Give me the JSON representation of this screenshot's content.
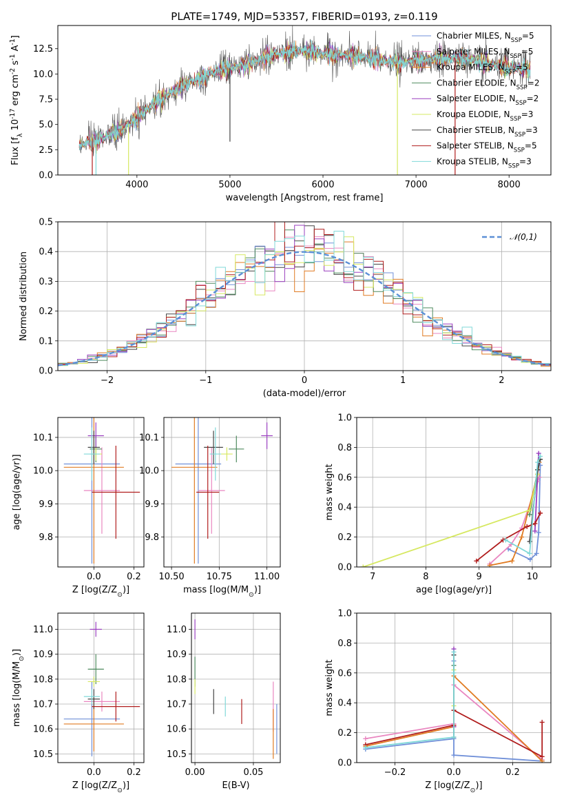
{
  "series_defs": [
    {
      "name": "Chabrier MILES, N$_{SSP}$=5",
      "color": "#6f8fd8"
    },
    {
      "name": "Salpeter MILES, N$_{SSP}$=5",
      "color": "#e986c0"
    },
    {
      "name": "Kroupa MILES, N$_{SSP}$=5",
      "color": "#e07b22"
    },
    {
      "name": "Chabrier ELODIE, N$_{SSP}$=2",
      "color": "#4e8a5e"
    },
    {
      "name": "Salpeter ELODIE, N$_{SSP}$=2",
      "color": "#9a3fbf"
    },
    {
      "name": "Kroupa ELODIE, N$_{SSP}$=3",
      "color": "#d6e860"
    },
    {
      "name": "Chabrier STELIB, N$_{SSP}$=3",
      "color": "#444444"
    },
    {
      "name": "Salpeter STELIB, N$_{SSP}$=5",
      "color": "#b01c1c"
    },
    {
      "name": "Kroupa STELIB, N$_{SSP}$=3",
      "color": "#7fd8d8"
    }
  ],
  "chart_data": [
    {
      "id": "spectrum",
      "type": "line",
      "title": "PLATE=1749, MJD=53357, FIBERID=0193, z=0.119",
      "xlabel": "wavelength [Angstrom, rest frame]",
      "ylabel": "Flux [$f_\\lambda 10^{-17}$ erg cm$^{-2}$ s$^{-1}$ A$^{-1}$]",
      "xlim": [
        3150,
        8450
      ],
      "ylim": [
        0,
        14.8
      ],
      "xticks": [
        4000,
        5000,
        6000,
        7000,
        8000
      ],
      "yticks": [
        0.0,
        2.5,
        5.0,
        7.5,
        10.0,
        12.5
      ],
      "ytick_labels": [
        "0.0",
        "2.5",
        "5.0",
        "7.5",
        "10.0",
        "12.5"
      ],
      "grid": false,
      "legend_position": "top-right",
      "continuum": [
        [
          3400,
          3.0
        ],
        [
          3600,
          3.6
        ],
        [
          3800,
          4.3
        ],
        [
          4000,
          5.6
        ],
        [
          4200,
          7.2
        ],
        [
          4400,
          8.4
        ],
        [
          4600,
          9.3
        ],
        [
          4800,
          10.1
        ],
        [
          5000,
          10.6
        ],
        [
          5200,
          11.0
        ],
        [
          5400,
          11.7
        ],
        [
          5600,
          12.1
        ],
        [
          5800,
          12.3
        ],
        [
          6000,
          12.0
        ],
        [
          6200,
          11.9
        ],
        [
          6400,
          11.7
        ],
        [
          6600,
          11.4
        ],
        [
          6800,
          11.1
        ],
        [
          7000,
          11.3
        ],
        [
          7200,
          11.5
        ],
        [
          7400,
          11.6
        ],
        [
          7600,
          11.4
        ],
        [
          7800,
          10.9
        ],
        [
          8000,
          10.6
        ],
        [
          8200,
          10.5
        ]
      ],
      "x_range_data": [
        3380,
        8230
      ],
      "spikes": [
        {
          "x": 3520,
          "y_min": 0,
          "series": 7
        },
        {
          "x": 3560,
          "y_min": 0,
          "series": 8
        },
        {
          "x": 3910,
          "y_min": 0,
          "series": 5
        },
        {
          "x": 5000,
          "y_min": 3.3,
          "series": 6
        },
        {
          "x": 6800,
          "y_min": 0,
          "series": 5
        },
        {
          "x": 7420,
          "y_min": 0,
          "series": 7
        }
      ]
    },
    {
      "id": "residuals",
      "type": "line",
      "xlabel": "(data-model)/error",
      "ylabel": "Normed distribution",
      "xlim": [
        -2.5,
        2.5
      ],
      "ylim": [
        0,
        0.5
      ],
      "xticks": [
        -2,
        -1,
        0,
        1,
        2
      ],
      "xtick_labels": [
        "−2",
        "−1",
        "0",
        "1",
        "2"
      ],
      "yticks": [
        0.0,
        0.1,
        0.2,
        0.3,
        0.4,
        0.5
      ],
      "ytick_labels": [
        "0.0",
        "0.1",
        "0.2",
        "0.3",
        "0.4",
        "0.5"
      ],
      "grid": true,
      "legend_position": "top-right",
      "reference_curve": {
        "name": "$\\mathcal{N}(0,1)$",
        "color": "#5b8fd6",
        "mean": 0,
        "sigma": 1
      },
      "bin_width": 0.1,
      "outlier_bins": [
        {
          "x": 0.2,
          "y": 0.475,
          "series": 7
        },
        {
          "x": -1.0,
          "y": 0.3,
          "series": 3
        }
      ]
    },
    {
      "id": "age_vs_Z",
      "type": "scatter",
      "xlabel": "Z [$\\log_{10}(Z/Z_\\odot)$]",
      "ylabel": "age  [$\\log_{10}(age/yr)$]",
      "xlim": [
        -0.18,
        0.25
      ],
      "ylim": [
        9.71,
        10.16
      ],
      "xticks": [
        0.0,
        0.2
      ],
      "xtick_labels": [
        "0.0",
        "0.2"
      ],
      "yticks": [
        9.8,
        9.9,
        10.0,
        10.1
      ],
      "ytick_labels": [
        "9.8",
        "9.9",
        "10.0",
        "10.1"
      ],
      "grid": true,
      "points": [
        {
          "series": 0,
          "x": -0.01,
          "y": 10.02,
          "xerr": 0.14,
          "yerr": 0.3
        },
        {
          "series": 1,
          "x": 0.04,
          "y": 9.94,
          "xerr": 0.09,
          "yerr": 0.13
        },
        {
          "series": 2,
          "x": 0.0,
          "y": 10.01,
          "xerr": 0.15,
          "yerr": 0.29
        },
        {
          "series": 3,
          "x": 0.01,
          "y": 10.065,
          "xerr": 0.03,
          "yerr": 0.04
        },
        {
          "series": 4,
          "x": 0.01,
          "y": 10.105,
          "xerr": 0.04,
          "yerr": 0.04
        },
        {
          "series": 5,
          "x": 0.01,
          "y": 10.05,
          "xerr": 0.03,
          "yerr": 0.02
        },
        {
          "series": 6,
          "x": 0.0,
          "y": 10.07,
          "xerr": 0.03,
          "yerr": 0.05
        },
        {
          "series": 7,
          "x": 0.11,
          "y": 9.935,
          "xerr": 0.12,
          "yerr": 0.14
        },
        {
          "series": 8,
          "x": -0.01,
          "y": 10.05,
          "xerr": 0.04,
          "yerr": 0.08
        }
      ]
    },
    {
      "id": "age_vs_mass",
      "type": "scatter",
      "xlabel": "mass [$\\log_{10}(M/M_\\odot)$]",
      "ylabel": "",
      "xlim": [
        10.46,
        11.07
      ],
      "ylim": [
        9.71,
        10.16
      ],
      "xticks": [
        10.5,
        10.75,
        11.0
      ],
      "xtick_labels": [
        "10.50",
        "10.75",
        "11.00"
      ],
      "yticks": [
        9.8,
        9.9,
        10.0,
        10.1
      ],
      "ytick_labels": [
        "9.8",
        "9.9",
        "10.0",
        "10.1"
      ],
      "grid": true,
      "points": [
        {
          "series": 0,
          "x": 10.64,
          "y": 10.02,
          "xerr": 0.12,
          "yerr": 0.3
        },
        {
          "series": 1,
          "x": 10.71,
          "y": 9.94,
          "xerr": 0.07,
          "yerr": 0.13
        },
        {
          "series": 2,
          "x": 10.62,
          "y": 10.01,
          "xerr": 0.12,
          "yerr": 0.29
        },
        {
          "series": 3,
          "x": 10.84,
          "y": 10.065,
          "xerr": 0.04,
          "yerr": 0.04
        },
        {
          "series": 4,
          "x": 11.0,
          "y": 10.105,
          "xerr": 0.03,
          "yerr": 0.04
        },
        {
          "series": 5,
          "x": 10.79,
          "y": 10.05,
          "xerr": 0.03,
          "yerr": 0.02
        },
        {
          "series": 6,
          "x": 10.72,
          "y": 10.07,
          "xerr": 0.05,
          "yerr": 0.05
        },
        {
          "series": 7,
          "x": 10.69,
          "y": 9.935,
          "xerr": 0.06,
          "yerr": 0.14
        },
        {
          "series": 8,
          "x": 10.73,
          "y": 10.05,
          "xerr": 0.03,
          "yerr": 0.08
        }
      ]
    },
    {
      "id": "massweight_vs_age",
      "type": "line",
      "xlabel": "age  [$\\log_{10}(age/yr)$]",
      "ylabel": "mass weight",
      "xlim": [
        6.7,
        10.35
      ],
      "ylim": [
        0,
        1
      ],
      "xticks": [
        7,
        8,
        9,
        10
      ],
      "xtick_labels": [
        "7",
        "8",
        "9",
        "10"
      ],
      "yticks": [
        0.0,
        0.2,
        0.4,
        0.6,
        0.8,
        1.0
      ],
      "ytick_labels": [
        "0.0",
        "0.2",
        "0.4",
        "0.6",
        "0.8",
        "1.0"
      ],
      "grid": true,
      "lines": [
        {
          "series": 0,
          "x": [
            9.55,
            9.96,
            10.08,
            10.12,
            10.15
          ],
          "y": [
            0.12,
            0.05,
            0.09,
            0.23,
            0.68
          ]
        },
        {
          "series": 1,
          "x": [
            9.2,
            9.6,
            9.8,
            10.1,
            10.13
          ],
          "y": [
            0.02,
            0.15,
            0.26,
            0.57,
            0.6
          ]
        },
        {
          "series": 2,
          "x": [
            9.2,
            9.62,
            9.8,
            10.1,
            10.13
          ],
          "y": [
            0.01,
            0.04,
            0.2,
            0.62,
            0.7
          ]
        },
        {
          "series": 3,
          "x": [
            9.95,
            10.1
          ],
          "y": [
            0.35,
            0.65
          ]
        },
        {
          "series": 4,
          "x": [
            10.05,
            10.12
          ],
          "y": [
            0.24,
            0.76
          ]
        },
        {
          "series": 5,
          "x": [
            6.82,
            9.95,
            10.1
          ],
          "y": [
            0.0,
            0.38,
            0.62
          ]
        },
        {
          "series": 6,
          "x": [
            9.95,
            10.1,
            10.15
          ],
          "y": [
            0.17,
            0.65,
            0.72
          ]
        },
        {
          "series": 7,
          "x": [
            8.95,
            9.45,
            9.9,
            10.05,
            10.15
          ],
          "y": [
            0.04,
            0.18,
            0.27,
            0.29,
            0.36
          ]
        },
        {
          "series": 8,
          "x": [
            9.5,
            9.95,
            10.1,
            10.15
          ],
          "y": [
            0.18,
            0.09,
            0.7,
            0.74
          ]
        }
      ]
    },
    {
      "id": "mass_vs_Z",
      "type": "scatter",
      "xlabel": "Z [$\\log_{10}(Z/Z_\\odot)$]",
      "ylabel": "mass [$\\log_{10}(M/M_\\odot)$]",
      "xlim": [
        -0.18,
        0.25
      ],
      "ylim": [
        10.465,
        11.065
      ],
      "xticks": [
        0.0,
        0.2
      ],
      "xtick_labels": [
        "0.0",
        "0.2"
      ],
      "yticks": [
        10.5,
        10.6,
        10.7,
        10.8,
        10.9,
        11.0
      ],
      "ytick_labels": [
        "10.5",
        "10.6",
        "10.7",
        "10.8",
        "10.9",
        "11.0"
      ],
      "grid": true,
      "points": [
        {
          "series": 0,
          "x": -0.01,
          "y": 10.64,
          "xerr": 0.14,
          "yerr": 0.15
        },
        {
          "series": 1,
          "x": 0.04,
          "y": 10.71,
          "xerr": 0.09,
          "yerr": 0.04
        },
        {
          "series": 2,
          "x": 0.0,
          "y": 10.62,
          "xerr": 0.15,
          "yerr": 0.11
        },
        {
          "series": 3,
          "x": 0.01,
          "y": 10.84,
          "xerr": 0.04,
          "yerr": 0.06
        },
        {
          "series": 4,
          "x": 0.01,
          "y": 11.0,
          "xerr": 0.03,
          "yerr": 0.03
        },
        {
          "series": 5,
          "x": 0.0,
          "y": 10.79,
          "xerr": 0.03,
          "yerr": 0.02
        },
        {
          "series": 6,
          "x": 0.0,
          "y": 10.72,
          "xerr": 0.03,
          "yerr": 0.04
        },
        {
          "series": 7,
          "x": 0.11,
          "y": 10.69,
          "xerr": 0.12,
          "yerr": 0.06
        },
        {
          "series": 8,
          "x": -0.01,
          "y": 10.73,
          "xerr": 0.04,
          "yerr": 0.03
        }
      ]
    },
    {
      "id": "mass_vs_EBV",
      "type": "scatter",
      "xlabel": "E(B-V)",
      "ylabel": "",
      "xlim": [
        -0.003,
        0.073
      ],
      "ylim": [
        10.465,
        11.065
      ],
      "xticks": [
        0.0,
        0.05
      ],
      "xtick_labels": [
        "0.00",
        "0.05"
      ],
      "yticks": [
        10.5,
        10.6,
        10.7,
        10.8,
        10.9,
        11.0
      ],
      "ytick_labels": [
        "10.5",
        "10.6",
        "10.7",
        "10.8",
        "10.9",
        "11.0"
      ],
      "grid": true,
      "points": [
        {
          "series": 0,
          "x": 0.07,
          "y": 10.6,
          "xerr": 0.0,
          "yerr": 0.1
        },
        {
          "series": 1,
          "x": 0.067,
          "y": 10.69,
          "xerr": 0.0,
          "yerr": 0.1
        },
        {
          "series": 2,
          "x": 0.067,
          "y": 10.58,
          "xerr": 0.0,
          "yerr": 0.1
        },
        {
          "series": 3,
          "x": 0.0,
          "y": 10.83,
          "xerr": 0.0,
          "yerr": 0.06
        },
        {
          "series": 4,
          "x": 0.0,
          "y": 11.0,
          "xerr": 0.0,
          "yerr": 0.04
        },
        {
          "series": 5,
          "x": 0.0,
          "y": 10.77,
          "xerr": 0.0,
          "yerr": 0.03
        },
        {
          "series": 6,
          "x": 0.016,
          "y": 10.71,
          "xerr": 0.0,
          "yerr": 0.05
        },
        {
          "series": 7,
          "x": 0.04,
          "y": 10.67,
          "xerr": 0.0,
          "yerr": 0.05
        },
        {
          "series": 8,
          "x": 0.026,
          "y": 10.69,
          "xerr": 0.0,
          "yerr": 0.04
        }
      ]
    },
    {
      "id": "massweight_vs_Z",
      "type": "line",
      "xlabel": "Z [$\\log_{10}(Z/Z_\\odot)$]",
      "ylabel": "mass weight",
      "xlim": [
        -0.33,
        0.33
      ],
      "ylim": [
        0,
        1
      ],
      "xticks": [
        -0.2,
        0.0,
        0.2
      ],
      "xtick_labels": [
        "−0.2",
        "0.0",
        "0.2"
      ],
      "yticks": [
        0.0,
        0.2,
        0.4,
        0.6,
        0.8,
        1.0
      ],
      "ytick_labels": [
        "0.0",
        "0.2",
        "0.4",
        "0.6",
        "0.8",
        "1.0"
      ],
      "grid": true,
      "lines": [
        {
          "series": 0,
          "x": [
            -0.3,
            0.0,
            0.0,
            0.0,
            0.3
          ],
          "y": [
            0.09,
            0.16,
            0.68,
            0.05,
            0.01
          ]
        },
        {
          "series": 1,
          "x": [
            -0.3,
            0.0,
            0.0,
            0.3
          ],
          "y": [
            0.16,
            0.26,
            0.52,
            0.02
          ]
        },
        {
          "series": 2,
          "x": [
            -0.3,
            0.0,
            0.0,
            0.3
          ],
          "y": [
            0.11,
            0.24,
            0.58,
            0.01
          ]
        },
        {
          "series": 3,
          "x": [
            0.0,
            0.0
          ],
          "y": [
            0.35,
            0.65
          ]
        },
        {
          "series": 4,
          "x": [
            0.0,
            0.0
          ],
          "y": [
            0.24,
            0.76
          ]
        },
        {
          "series": 5,
          "x": [
            0.0,
            0.0
          ],
          "y": [
            0.38,
            0.62
          ]
        },
        {
          "series": 6,
          "x": [
            0.0,
            0.0
          ],
          "y": [
            0.17,
            0.72
          ]
        },
        {
          "series": 7,
          "x": [
            -0.3,
            0.0,
            0.0,
            0.3,
            0.3
          ],
          "y": [
            0.12,
            0.25,
            0.35,
            0.04,
            0.27
          ]
        },
        {
          "series": 8,
          "x": [
            -0.3,
            0.0,
            0.0,
            0.0
          ],
          "y": [
            0.1,
            0.17,
            0.74,
            0.6
          ]
        }
      ]
    }
  ]
}
